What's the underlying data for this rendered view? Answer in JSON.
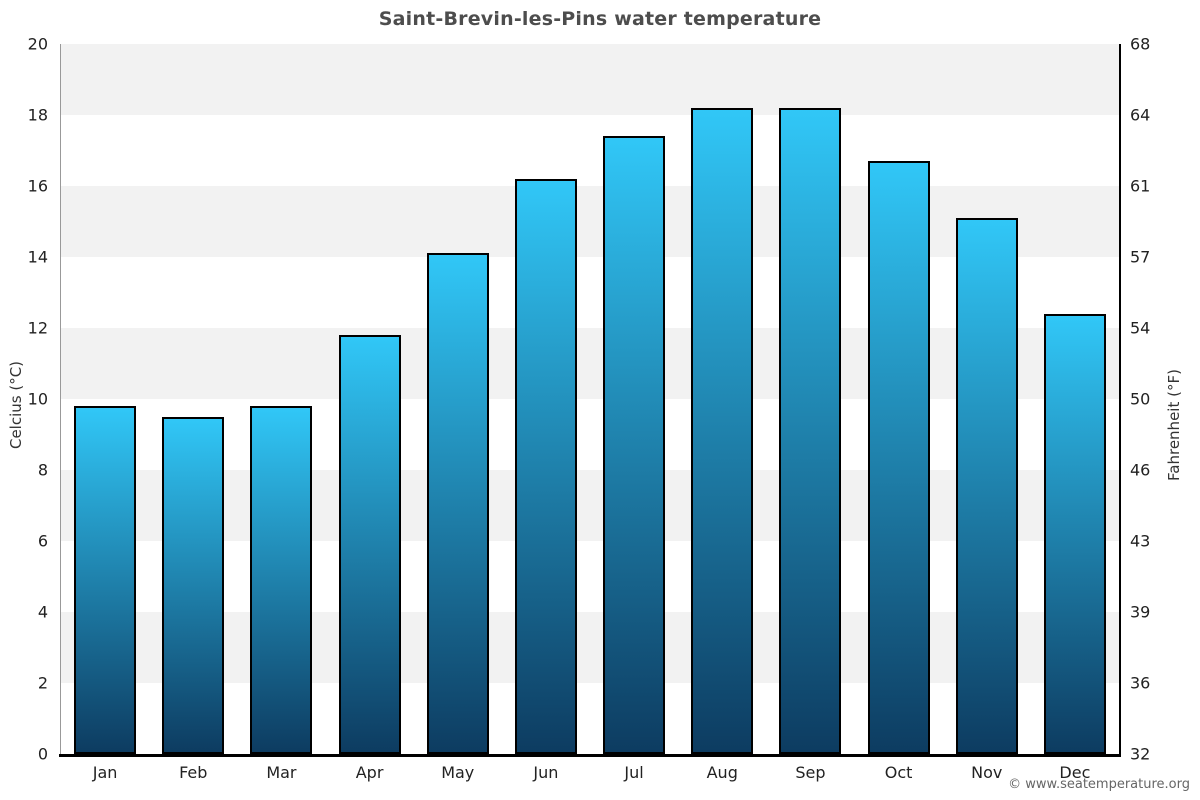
{
  "title": "Saint-Brevin-les-Pins water temperature",
  "footer": "© www.seatemperature.org",
  "chart_data": {
    "type": "bar",
    "title": "Saint-Brevin-les-Pins water temperature",
    "categories": [
      "Jan",
      "Feb",
      "Mar",
      "Apr",
      "May",
      "Jun",
      "Jul",
      "Aug",
      "Sep",
      "Oct",
      "Nov",
      "Dec"
    ],
    "values": [
      9.8,
      9.5,
      9.8,
      11.8,
      14.1,
      16.2,
      17.4,
      18.2,
      18.2,
      16.7,
      15.1,
      12.4
    ],
    "unit": "°C",
    "xlabel": "",
    "ylabel_left": "Celcius (°C)",
    "ylabel_right": "Fahrenheit (°F)",
    "ylim": [
      0,
      20
    ],
    "yticks_left": [
      "20",
      "18",
      "16",
      "14",
      "12",
      "10",
      "8",
      "6",
      "4",
      "2",
      "0"
    ],
    "yticks_right": [
      "68",
      "64",
      "61",
      "57",
      "54",
      "50",
      "46",
      "43",
      "39",
      "36",
      "32"
    ],
    "grid": "alternating-horizontal-bands",
    "legend": "none",
    "colors": {
      "bar_gradient_top": "#31c7f7",
      "bar_gradient_bottom": "#0d3c61",
      "bar_border": "#000000",
      "band_gray": "#f2f2f2",
      "band_white": "#ffffff",
      "axis_left_line": "#999999",
      "axis_right_line": "#000000",
      "axis_bottom_line": "#000000",
      "title_color": "#4d4d4d",
      "tick_color": "#222222",
      "axis_label_color": "#333333",
      "footer_color": "#666666"
    }
  }
}
